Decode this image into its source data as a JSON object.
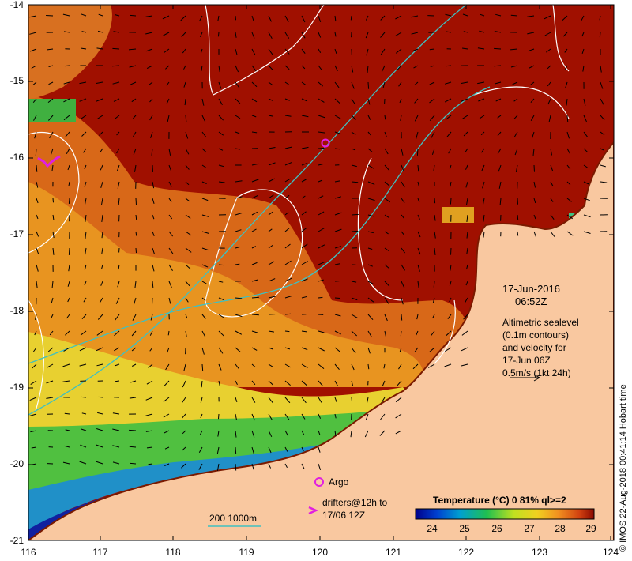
{
  "map": {
    "lat_labels": [
      "-14",
      "-15",
      "-16",
      "-17",
      "-18",
      "-19",
      "-20",
      "-21"
    ],
    "lon_labels": [
      "116",
      "117",
      "118",
      "119",
      "120",
      "121",
      "122",
      "123",
      "124"
    ],
    "date_line1": "17-Jun-2016",
    "date_line2": "06:52Z",
    "alt_line1": "Altimetric sealevel",
    "alt_line2": "(0.1m contours)",
    "alt_line3": "and velocity for",
    "alt_line4": "17-Jun 06Z",
    "alt_line5": "0.5m/s (1kt 24h)",
    "argo_label": "Argo",
    "drifters_line1": "drifters@12h to",
    "drifters_line2": "17/06 12Z",
    "bathy_label": "200  1000m",
    "credit": "© IMOS 22-Aug-2018 00:41:14 Hobart time"
  },
  "colorbar": {
    "title": "Temperature (°C) 0 81% ql>=2",
    "ticks": [
      "24",
      "25",
      "26",
      "27",
      "28",
      "29"
    ]
  },
  "colors": {
    "land": "#f9c8a0",
    "hot": "#a01000",
    "warm": "#d86818",
    "mid": "#f0b020",
    "yellow": "#e8e040",
    "green": "#30c030",
    "cyan": "#20a0d0",
    "blue": "#1020a0",
    "navy": "#000060",
    "argo": "#e020e0",
    "bathy": "#40c0c0"
  }
}
